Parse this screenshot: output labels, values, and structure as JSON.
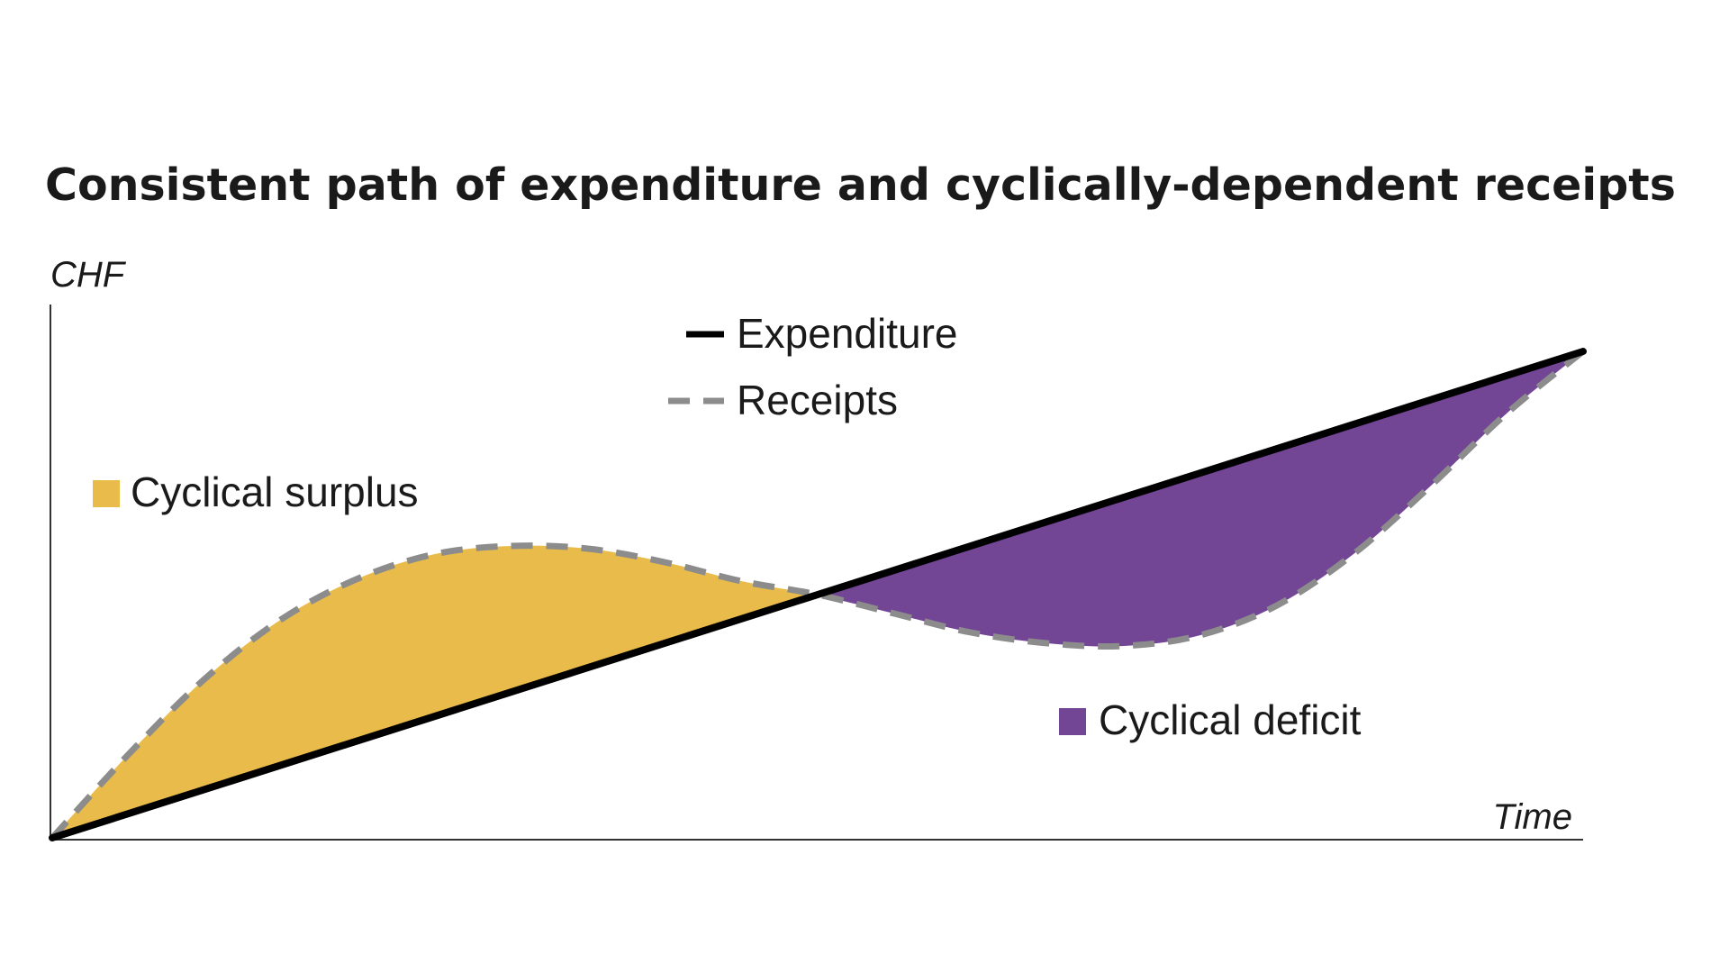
{
  "chart_data": {
    "type": "line",
    "title": "Consistent path of expenditure and cyclically-dependent receipts",
    "ylabel": "CHF",
    "xlabel": "Time",
    "xlim": [
      0,
      10
    ],
    "ylim": [
      0,
      10
    ],
    "grid": false,
    "series": [
      {
        "name": "Expenditure",
        "style": "solid",
        "color": "#000000",
        "x": [
          0,
          10
        ],
        "y": [
          0,
          9
        ]
      },
      {
        "name": "Receipts",
        "style": "dashed",
        "color": "#8c8c8c",
        "x": [
          0,
          0.5,
          1,
          1.5,
          2,
          2.5,
          3,
          3.5,
          4,
          4.5,
          5,
          5.5,
          6,
          6.5,
          7,
          7.5,
          8,
          8.5,
          9,
          9.5,
          10
        ],
        "y": [
          0,
          1.55,
          2.95,
          4.05,
          4.8,
          5.25,
          5.4,
          5.35,
          5.1,
          4.75,
          4.5,
          4.15,
          3.8,
          3.6,
          3.55,
          3.75,
          4.3,
          5.25,
          6.5,
          7.85,
          9
        ]
      }
    ],
    "areas": [
      {
        "name": "Cyclical surplus",
        "color": "#e9bb4a",
        "x_range": [
          0,
          5
        ]
      },
      {
        "name": "Cyclical deficit",
        "color": "#724595",
        "x_range": [
          5,
          10
        ]
      }
    ],
    "legend": {
      "lines": [
        "Expenditure",
        "Receipts"
      ],
      "areas": [
        "Cyclical surplus",
        "Cyclical deficit"
      ]
    }
  }
}
